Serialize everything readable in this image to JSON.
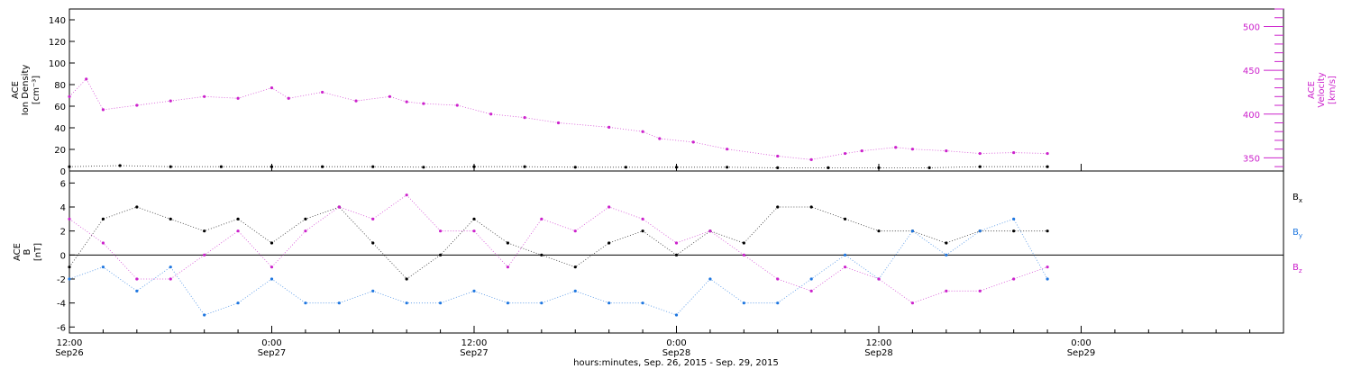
{
  "chart_data": [
    {
      "type": "scatter",
      "panel": "plasma",
      "ylabel_left": [
        "ACE",
        "Ion Density",
        "[cm⁻³]"
      ],
      "ylabel_right": [
        "ACE",
        "Velocity",
        "[km/s]"
      ],
      "ylim_left": [
        0,
        150
      ],
      "ylim_right": [
        335,
        520
      ],
      "yticks_left": [
        "0",
        "20",
        "40",
        "60",
        "80",
        "100",
        "120",
        "140"
      ],
      "yticks_right": [
        "350",
        "400",
        "450",
        "500"
      ],
      "series": [
        {
          "name": "",
          "axis": "left",
          "color": "#000000",
          "x_hours": [
            0,
            3,
            6,
            9,
            12,
            15,
            18,
            21,
            24,
            27,
            30,
            33,
            36,
            39,
            42,
            45,
            48,
            51,
            54,
            58
          ],
          "values": [
            4,
            5,
            4,
            4,
            4,
            4,
            4,
            3.5,
            4,
            4,
            3.5,
            3.5,
            3.5,
            3.5,
            3,
            3,
            3,
            3,
            4,
            4
          ]
        },
        {
          "name": "",
          "axis": "right",
          "color": "#cc22cc",
          "x_hours": [
            0,
            1,
            2,
            4,
            6,
            8,
            10,
            12,
            13,
            15,
            17,
            19,
            20,
            21,
            23,
            25,
            27,
            29,
            32,
            34,
            35,
            37,
            39,
            42,
            44,
            46,
            47,
            49,
            50,
            52,
            54,
            56,
            58
          ],
          "values": [
            420,
            440,
            405,
            410,
            415,
            420,
            418,
            430,
            418,
            425,
            415,
            420,
            414,
            412,
            410,
            400,
            396,
            390,
            385,
            380,
            372,
            368,
            360,
            352,
            348,
            355,
            358,
            362,
            360,
            358,
            355,
            356,
            355
          ]
        }
      ]
    },
    {
      "type": "scatter",
      "panel": "magnetic-field",
      "ylabel": [
        "ACE",
        "B",
        "[nT]"
      ],
      "ylim": [
        -6.5,
        7
      ],
      "yticks": [
        "-6",
        "-4",
        "-2",
        "0",
        "2",
        "4",
        "6"
      ],
      "legend": [
        {
          "name": "B",
          "sub": "x",
          "color": "#000000"
        },
        {
          "name": "B",
          "sub": "y",
          "color": "#1f77e0"
        },
        {
          "name": "B",
          "sub": "z",
          "color": "#cc22cc"
        }
      ],
      "series": [
        {
          "name": "Bx",
          "color": "#000000",
          "x_hours": [
            0,
            2,
            4,
            6,
            8,
            10,
            12,
            14,
            16,
            18,
            20,
            22,
            24,
            26,
            28,
            30,
            32,
            34,
            36,
            38,
            40,
            42,
            44,
            46,
            48,
            50,
            52,
            54,
            56,
            58
          ],
          "values": [
            -1,
            3,
            4,
            3,
            2,
            3,
            1,
            3,
            4,
            1,
            -2,
            0,
            3,
            1,
            0,
            -1,
            1,
            2,
            0,
            2,
            1,
            4,
            4,
            3,
            2,
            2,
            1,
            2,
            2,
            2
          ]
        },
        {
          "name": "By",
          "color": "#1f77e0",
          "x_hours": [
            0,
            2,
            4,
            6,
            8,
            10,
            12,
            14,
            16,
            18,
            20,
            22,
            24,
            26,
            28,
            30,
            32,
            34,
            36,
            38,
            40,
            42,
            44,
            46,
            48,
            50,
            52,
            54,
            56,
            58
          ],
          "values": [
            -2,
            -1,
            -3,
            -1,
            -5,
            -4,
            -2,
            -4,
            -4,
            -3,
            -4,
            -4,
            -3,
            -4,
            -4,
            -3,
            -4,
            -4,
            -5,
            -2,
            -4,
            -4,
            -2,
            0,
            -2,
            2,
            0,
            2,
            3,
            -2
          ]
        },
        {
          "name": "Bz",
          "color": "#cc22cc",
          "x_hours": [
            0,
            2,
            4,
            6,
            8,
            10,
            12,
            14,
            16,
            18,
            20,
            22,
            24,
            26,
            28,
            30,
            32,
            34,
            36,
            38,
            40,
            42,
            44,
            46,
            48,
            50,
            52,
            54,
            56,
            58
          ],
          "values": [
            3,
            1,
            -2,
            -2,
            0,
            2,
            -1,
            2,
            4,
            3,
            5,
            2,
            2,
            -1,
            3,
            2,
            4,
            3,
            1,
            2,
            0,
            -2,
            -3,
            -1,
            -2,
            -4,
            -3,
            -3,
            -2,
            -1
          ]
        }
      ]
    }
  ],
  "x_axis": {
    "hours_range": [
      0,
      72
    ],
    "ticks": [
      {
        "hour": 0,
        "line1": "12:00",
        "line2": "Sep26"
      },
      {
        "hour": 12,
        "line1": "0:00",
        "line2": "Sep27"
      },
      {
        "hour": 24,
        "line1": "12:00",
        "line2": "Sep27"
      },
      {
        "hour": 36,
        "line1": "0:00",
        "line2": "Sep28"
      },
      {
        "hour": 48,
        "line1": "12:00",
        "line2": "Sep28"
      },
      {
        "hour": 60,
        "line1": "0:00",
        "line2": "Sep29"
      }
    ],
    "label": "hours:minutes, Sep. 26, 2015 - Sep. 29, 2015"
  }
}
